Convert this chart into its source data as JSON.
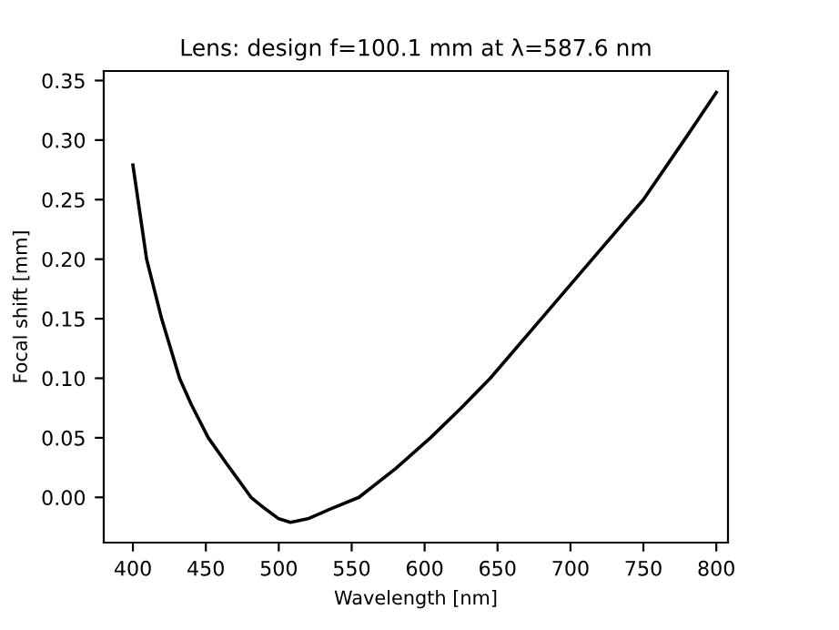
{
  "chart_data": {
    "type": "line",
    "title": "Lens: design f=100.1 mm at λ=587.6 nm",
    "xlabel": "Wavelength [nm]",
    "ylabel": "Focal shift [mm]",
    "series": [
      {
        "color": "#000000",
        "x": [
          400,
          405,
          409.4,
          419.7,
          432,
          440,
          451.7,
          465,
          481,
          490,
          500,
          508,
          520,
          535,
          555,
          580,
          604,
          625,
          645,
          680,
          715,
          750,
          778,
          800
        ],
        "values": [
          0.279,
          0.237,
          0.2,
          0.15,
          0.1,
          0.078,
          0.05,
          0.027,
          0.0,
          -0.009,
          -0.018,
          -0.021,
          -0.018,
          -0.01,
          0.0,
          0.024,
          0.05,
          0.075,
          0.1,
          0.15,
          0.2,
          0.25,
          0.3,
          0.34
        ]
      }
    ],
    "xlim": [
      380,
      808
    ],
    "ylim": [
      -0.038,
      0.358
    ],
    "xticks": [
      400,
      450,
      500,
      550,
      600,
      650,
      700,
      750,
      800
    ],
    "yticks": [
      {
        "value": 0,
        "label": "0.00"
      },
      {
        "value": 0.05,
        "label": "0.05"
      },
      {
        "value": 0.1,
        "label": "0.10"
      },
      {
        "value": 0.15,
        "label": "0.15"
      },
      {
        "value": 0.2,
        "label": "0.20"
      },
      {
        "value": 0.25,
        "label": "0.25"
      },
      {
        "value": 0.3,
        "label": "0.30"
      },
      {
        "value": 0.35,
        "label": "0.35"
      }
    ],
    "grid": false,
    "legend": false
  }
}
